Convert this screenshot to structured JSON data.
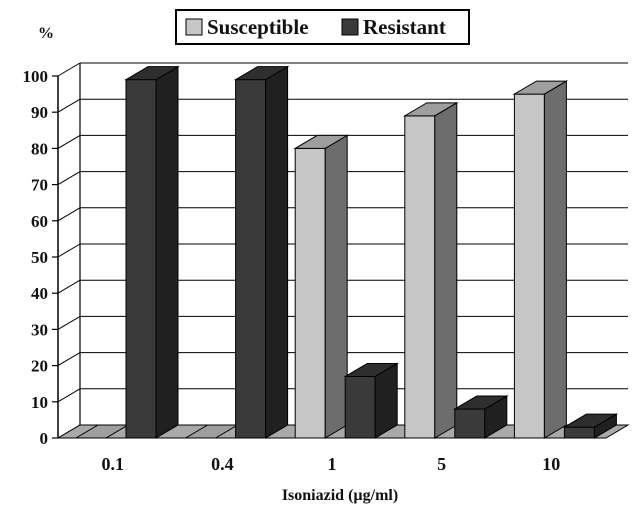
{
  "chart_data": {
    "type": "bar",
    "ylabel": "%",
    "xlabel": "Isoniazid (µg/ml)",
    "categories": [
      "0.1",
      "0.4",
      "1",
      "5",
      "10"
    ],
    "ylim": [
      0,
      100
    ],
    "yticks": [
      "0",
      "10",
      "20",
      "30",
      "40",
      "50",
      "60",
      "70",
      "80",
      "90",
      "100"
    ],
    "grid": true,
    "legend_position": "top",
    "style": "3d-bar",
    "series": [
      {
        "name": "Susceptible",
        "values": [
          0,
          0,
          80,
          89,
          95
        ],
        "color": "#c6c6c6"
      },
      {
        "name": "Resistant",
        "values": [
          99,
          99,
          17,
          8,
          3
        ],
        "color": "#3a3a3a"
      }
    ]
  }
}
